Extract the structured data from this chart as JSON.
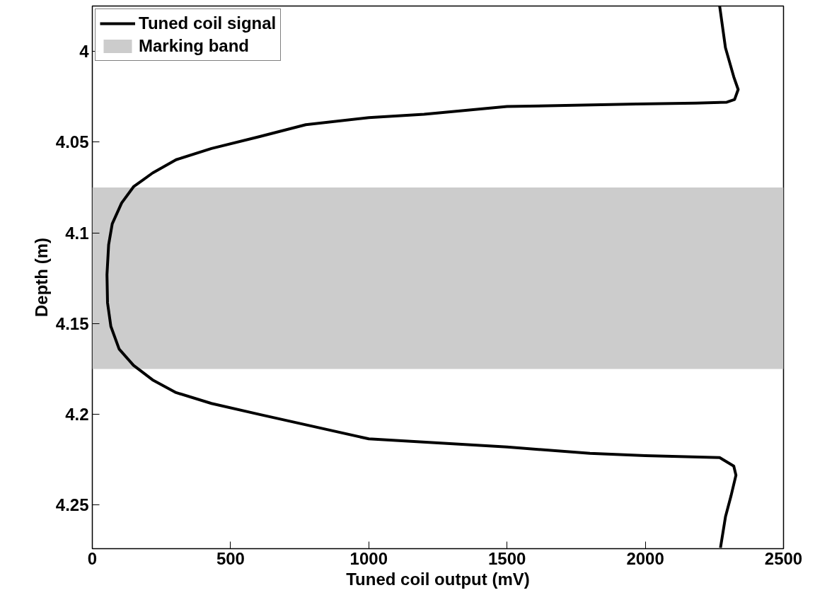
{
  "chart_data": {
    "type": "line",
    "xlabel": "Tuned coil output (mV)",
    "ylabel": "Depth (m)",
    "series": [
      {
        "name": "Tuned coil signal",
        "color": "#000000",
        "x": [
          2269,
          2290,
          2320,
          2336,
          2323,
          2295,
          2183,
          1969,
          1500,
          1200,
          1000,
          772,
          603,
          431,
          303,
          218,
          149,
          106,
          72,
          59,
          53,
          55,
          67,
          97,
          149,
          218,
          303,
          431,
          603,
          1000,
          1500,
          1800,
          2000,
          2269,
          2320,
          2328,
          2310,
          2290,
          2272
        ],
        "values": [
          3.975,
          3.998,
          4.014,
          4.021,
          4.0265,
          4.028,
          4.0285,
          4.029,
          4.0304,
          4.0346,
          4.0365,
          4.0404,
          4.047,
          4.0535,
          4.0597,
          4.067,
          4.0746,
          4.0835,
          4.095,
          4.1065,
          4.123,
          4.1385,
          4.1515,
          4.164,
          4.173,
          4.181,
          4.188,
          4.194,
          4.2,
          4.2135,
          4.218,
          4.2215,
          4.2227,
          4.2238,
          4.2285,
          4.2335,
          4.245,
          4.2565,
          4.2735
        ]
      }
    ],
    "bands": [
      {
        "axis": "y",
        "from": 4.075,
        "to": 4.175,
        "label": "Marking band",
        "color": "#cccccc"
      }
    ],
    "xlim": [
      0,
      2500
    ],
    "xticks": [
      0,
      500,
      1000,
      1500,
      2000,
      2500
    ],
    "ylim": [
      4.274,
      3.975
    ],
    "yticks": [
      4,
      4.05,
      4.1,
      4.15,
      4.2,
      4.25
    ],
    "grid": false,
    "legend": "top left",
    "line_style": "solid",
    "marker": "none"
  }
}
